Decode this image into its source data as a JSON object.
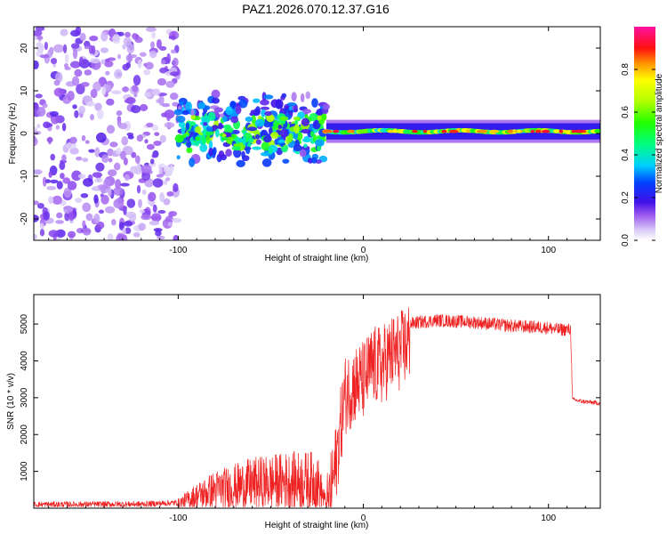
{
  "figure_title": "PAZ1.2026.070.12.37.G16",
  "chart_data": [
    {
      "type": "heatmap",
      "xlabel": "Height of straight line (km)",
      "ylabel": "Frequency (Hz)",
      "xlim": [
        -178,
        128
      ],
      "ylim": [
        -25,
        25
      ],
      "xticks": [
        -100,
        0,
        100
      ],
      "yticks": [
        -20,
        -10,
        0,
        10,
        20
      ],
      "colorbar": {
        "label": "Normalized spectral amplitude",
        "range": [
          0,
          1
        ],
        "ticks": [
          0.0,
          0.2,
          0.4,
          0.6,
          0.8
        ],
        "colormap": "purple-blue-cyan-green-yellow-orange-red-magenta"
      },
      "regions": [
        {
          "x_range": [
            -178,
            -100
          ],
          "freq_range": [
            -25,
            25
          ],
          "mean_amplitude": 0.12,
          "desc": "scattered weak noise"
        },
        {
          "x_range": [
            -100,
            -20
          ],
          "freq_range": [
            -10,
            12
          ],
          "mean_amplitude": 0.3,
          "desc": "fragmented band"
        },
        {
          "x_range": [
            -20,
            128
          ],
          "freq_range": [
            -1,
            2
          ],
          "mean_amplitude": 0.75,
          "desc": "narrow strong band"
        }
      ]
    },
    {
      "type": "line",
      "xlabel": "Height of straight line (km)",
      "ylabel": "SNR (10 * v/v)",
      "xlim": [
        -178,
        128
      ],
      "ylim": [
        0,
        5800
      ],
      "xticks": [
        -100,
        0,
        100
      ],
      "yticks": [
        1000,
        2000,
        3000,
        4000,
        5000
      ],
      "color": "#ee2222",
      "series": [
        {
          "name": "SNR",
          "x": [
            -178,
            -120,
            -100,
            -90,
            -80,
            -60,
            -40,
            -25,
            -20,
            -15,
            -10,
            -5,
            0,
            5,
            10,
            15,
            20,
            25,
            30,
            40,
            60,
            80,
            100,
            105,
            112,
            113,
            118,
            128
          ],
          "y": [
            100,
            110,
            150,
            400,
            600,
            800,
            900,
            900,
            150,
            1600,
            3500,
            3800,
            3900,
            4300,
            4300,
            4600,
            4700,
            5000,
            5050,
            5100,
            5050,
            4950,
            4900,
            4850,
            4850,
            2950,
            2900,
            2850
          ]
        }
      ]
    }
  ]
}
